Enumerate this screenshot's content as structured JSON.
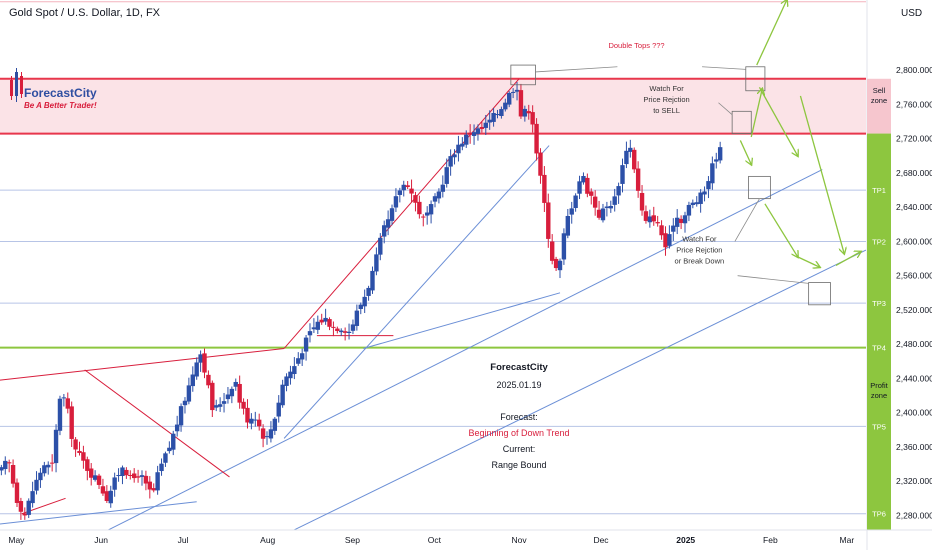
{
  "header": {
    "title": "Gold Spot / U.S. Dollar, 1D, FX"
  },
  "currency": "USD",
  "logo": {
    "name": "ForecastCity",
    "tagline": "Be A Better Trader!"
  },
  "colors": {
    "up": "#2c50a8",
    "down": "#d81e3c",
    "sell_zone": "#e8364c",
    "profit_zone": "#8dc63f",
    "trend_line": "#6b8fd6",
    "channel_line": "#d81e3c",
    "forecast_arrow": "#8dc63f"
  },
  "chart_data": {
    "type": "candlestick",
    "title": "Gold Spot / U.S. Dollar, 1D, FX",
    "y_axis": {
      "range": [
        2260,
        2880
      ],
      "ticks": [
        2280,
        2320,
        2360,
        2400,
        2440,
        2480,
        2520,
        2560,
        2600,
        2640,
        2680,
        2720,
        2760,
        2800
      ],
      "tick_labels": [
        "2,280.000",
        "2,320.000",
        "2,360.000",
        "2,400.000",
        "2,440.000",
        "2,480.000",
        "2,520.000",
        "2,560.000",
        "2,600.000",
        "2,640.000",
        "2,680.000",
        "2,720.000",
        "2,760.000",
        "2,800.000"
      ]
    },
    "x_axis": {
      "labels": [
        "May",
        "Jun",
        "Jul",
        "Aug",
        "Sep",
        "Oct",
        "Nov",
        "Dec",
        "2025",
        "Feb",
        "Mar"
      ],
      "label_days": [
        6,
        37,
        67,
        98,
        129,
        159,
        190,
        220,
        251,
        282,
        310
      ]
    },
    "candles": {
      "first_date": "2024-04-25",
      "first_close": 2330,
      "last_close": 2712,
      "series": "daily OHLC, approx. 185 sessions"
    },
    "key_points": [
      {
        "label": "early June low",
        "day": 39,
        "price": 2295
      },
      {
        "label": "July high",
        "day": 73,
        "price": 2480
      },
      {
        "label": "August low",
        "day": 98,
        "price": 2360
      },
      {
        "label": "October 31 high",
        "day": 189,
        "price": 2790
      },
      {
        "label": "mid November low",
        "day": 203,
        "price": 2538
      },
      {
        "label": "December 11 high",
        "day": 230,
        "price": 2726
      },
      {
        "label": "December 30 low",
        "day": 244,
        "price": 2590
      },
      {
        "label": "current",
        "day": 265,
        "price": 2712
      }
    ],
    "levels": [
      {
        "name": "sell-zone-top",
        "price": 2790
      },
      {
        "name": "sell-zone-bottom",
        "price": 2726
      },
      {
        "name": "TP1",
        "price": 2660
      },
      {
        "name": "TP2",
        "price": 2600
      },
      {
        "name": "TP3",
        "price": 2528
      },
      {
        "name": "TP4",
        "price": 2476
      },
      {
        "name": "TP5",
        "price": 2384
      },
      {
        "name": "TP6",
        "price": 2282
      }
    ],
    "zones": [
      {
        "name": "sell-zone",
        "label_lines": [
          "Sell",
          "zone"
        ],
        "from": 2726,
        "to": 2790
      },
      {
        "name": "profit-zone",
        "label_lines": [
          "Profit",
          "zone"
        ],
        "from": 2260,
        "to": 2726
      }
    ],
    "tp_labels": [
      "TP1",
      "TP2",
      "TP3",
      "TP4",
      "TP5",
      "TP6"
    ],
    "annotations": {
      "double_tops": "Double Tops ???",
      "watch_sell": [
        "Watch For",
        "Price Rejction",
        "to SELL"
      ],
      "watch_break": [
        "Watch For",
        "Price Rejction",
        "or Break Down"
      ],
      "info_block": {
        "brand": "ForecastCity",
        "date": "2025.01.19",
        "forecast_label": "Forecast:",
        "forecast_value": "Beginning of Down Trend",
        "current_label": "Current:",
        "current_value": "Range Bound"
      }
    }
  }
}
